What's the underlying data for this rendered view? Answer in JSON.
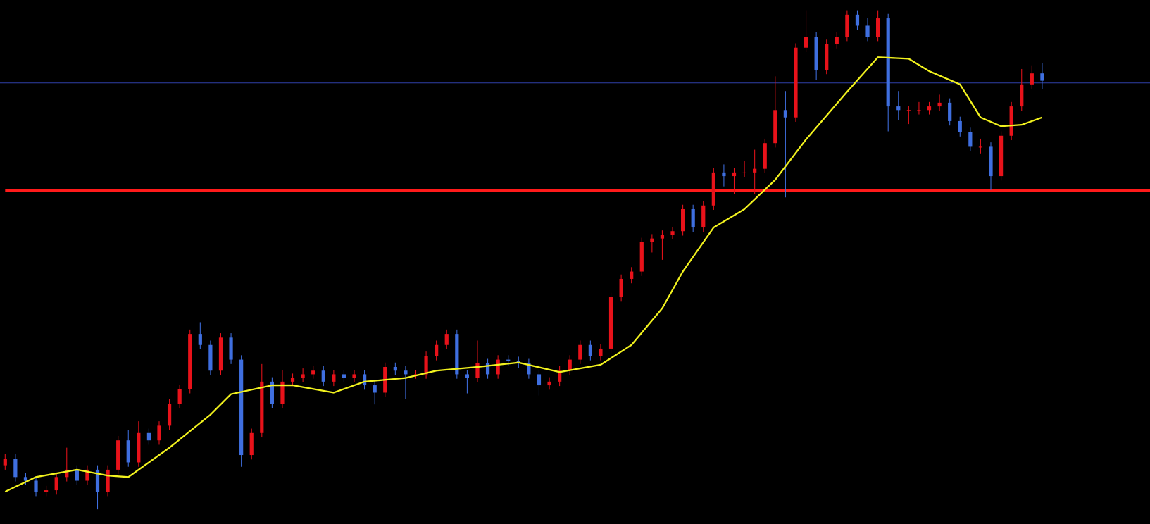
{
  "chart_data": {
    "type": "candlestick",
    "ylim": [
      0,
      714
    ],
    "up_color": "#e8121a",
    "down_color": "#3f6fe0",
    "background": "#000000",
    "candles": [
      [
        80,
        95,
        74,
        89
      ],
      [
        89,
        95,
        58,
        64
      ],
      [
        64,
        70,
        53,
        59
      ],
      [
        59,
        65,
        38,
        44
      ],
      [
        44,
        52,
        38,
        46
      ],
      [
        46,
        70,
        40,
        64
      ],
      [
        64,
        104,
        58,
        74
      ],
      [
        74,
        80,
        53,
        59
      ],
      [
        59,
        80,
        53,
        74
      ],
      [
        74,
        80,
        20,
        44
      ],
      [
        44,
        80,
        38,
        74
      ],
      [
        74,
        120,
        68,
        114
      ],
      [
        114,
        128,
        78,
        84
      ],
      [
        84,
        140,
        78,
        124
      ],
      [
        124,
        130,
        108,
        114
      ],
      [
        114,
        140,
        108,
        134
      ],
      [
        134,
        170,
        128,
        164
      ],
      [
        164,
        190,
        158,
        184
      ],
      [
        184,
        265,
        178,
        259
      ],
      [
        259,
        275,
        238,
        244
      ],
      [
        244,
        250,
        203,
        209
      ],
      [
        209,
        260,
        203,
        254
      ],
      [
        254,
        260,
        218,
        224
      ],
      [
        224,
        230,
        78,
        94
      ],
      [
        94,
        130,
        88,
        124
      ],
      [
        124,
        218,
        118,
        194
      ],
      [
        194,
        200,
        158,
        164
      ],
      [
        164,
        210,
        158,
        194
      ],
      [
        194,
        205,
        188,
        199
      ],
      [
        199,
        212,
        193,
        204
      ],
      [
        204,
        215,
        198,
        209
      ],
      [
        209,
        215,
        188,
        194
      ],
      [
        194,
        210,
        188,
        204
      ],
      [
        204,
        210,
        193,
        199
      ],
      [
        199,
        210,
        193,
        204
      ],
      [
        204,
        210,
        183,
        189
      ],
      [
        189,
        195,
        163,
        179
      ],
      [
        179,
        220,
        173,
        214
      ],
      [
        214,
        220,
        203,
        209
      ],
      [
        209,
        215,
        170,
        204
      ],
      [
        204,
        210,
        198,
        204
      ],
      [
        204,
        235,
        198,
        229
      ],
      [
        229,
        250,
        223,
        244
      ],
      [
        244,
        265,
        238,
        259
      ],
      [
        259,
        265,
        198,
        204
      ],
      [
        204,
        210,
        178,
        199
      ],
      [
        199,
        250,
        193,
        219
      ],
      [
        219,
        225,
        198,
        204
      ],
      [
        204,
        230,
        198,
        224
      ],
      [
        224,
        230,
        216,
        222
      ],
      [
        222,
        228,
        213,
        219
      ],
      [
        219,
        225,
        198,
        204
      ],
      [
        204,
        210,
        175,
        189
      ],
      [
        189,
        200,
        183,
        194
      ],
      [
        194,
        215,
        188,
        209
      ],
      [
        209,
        230,
        203,
        224
      ],
      [
        224,
        250,
        218,
        244
      ],
      [
        244,
        250,
        223,
        229
      ],
      [
        229,
        245,
        223,
        239
      ],
      [
        239,
        315,
        233,
        309
      ],
      [
        309,
        340,
        303,
        334
      ],
      [
        334,
        350,
        328,
        344
      ],
      [
        344,
        390,
        338,
        384
      ],
      [
        384,
        395,
        370,
        389
      ],
      [
        389,
        400,
        360,
        394
      ],
      [
        394,
        405,
        388,
        399
      ],
      [
        399,
        435,
        393,
        429
      ],
      [
        429,
        435,
        398,
        404
      ],
      [
        404,
        440,
        398,
        434
      ],
      [
        434,
        485,
        428,
        479
      ],
      [
        479,
        490,
        460,
        474
      ],
      [
        474,
        485,
        450,
        479
      ],
      [
        479,
        495,
        473,
        479
      ],
      [
        479,
        510,
        450,
        484
      ],
      [
        484,
        525,
        478,
        519
      ],
      [
        519,
        610,
        513,
        564
      ],
      [
        564,
        590,
        445,
        554
      ],
      [
        554,
        655,
        548,
        649
      ],
      [
        649,
        700,
        643,
        664
      ],
      [
        664,
        670,
        605,
        619
      ],
      [
        619,
        660,
        613,
        654
      ],
      [
        654,
        670,
        648,
        664
      ],
      [
        664,
        700,
        658,
        694
      ],
      [
        694,
        700,
        673,
        679
      ],
      [
        679,
        690,
        658,
        664
      ],
      [
        664,
        700,
        658,
        689
      ],
      [
        689,
        695,
        535,
        569
      ],
      [
        569,
        590,
        550,
        564
      ],
      [
        564,
        570,
        545,
        564
      ],
      [
        564,
        575,
        558,
        564
      ],
      [
        564,
        575,
        558,
        569
      ],
      [
        569,
        585,
        563,
        574
      ],
      [
        574,
        580,
        543,
        549
      ],
      [
        549,
        555,
        528,
        534
      ],
      [
        534,
        540,
        508,
        514
      ],
      [
        514,
        525,
        505,
        514
      ],
      [
        514,
        520,
        455,
        474
      ],
      [
        474,
        535,
        468,
        529
      ],
      [
        529,
        575,
        523,
        569
      ],
      [
        569,
        620,
        563,
        599
      ],
      [
        599,
        625,
        593,
        614
      ],
      [
        614,
        628,
        593,
        604
      ]
    ],
    "moving_average": {
      "color": "#f2f21e",
      "x": [
        0,
        3,
        7,
        10,
        12,
        16,
        20,
        22,
        26,
        28,
        32,
        35,
        39,
        42,
        46,
        50,
        54,
        58,
        61,
        64,
        66,
        69,
        72,
        75,
        78,
        82,
        85,
        88,
        90,
        93,
        95,
        97,
        99,
        101
      ],
      "values": [
        44,
        64,
        74,
        66,
        64,
        104,
        149,
        177,
        189,
        189,
        179,
        194,
        199,
        209,
        214,
        220,
        207,
        217,
        244,
        294,
        344,
        404,
        429,
        469,
        524,
        589,
        636,
        634,
        617,
        599,
        554,
        542,
        544,
        554
      ]
    },
    "hlines": [
      {
        "value": 454,
        "color": "#ff1a1a",
        "width": 4
      },
      {
        "value": 601,
        "color": "#2f3fa8",
        "width": 1
      }
    ]
  }
}
